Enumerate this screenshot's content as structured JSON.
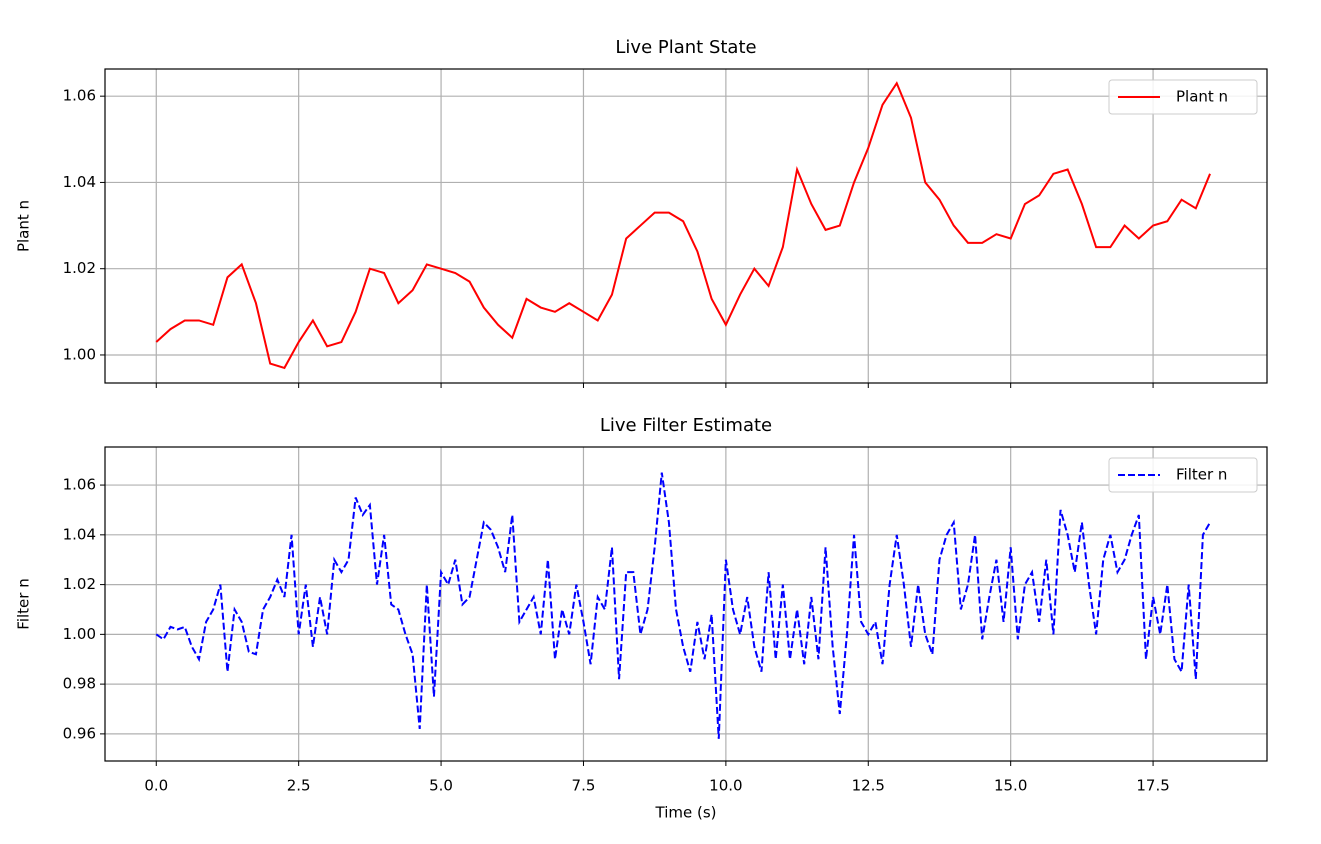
{
  "chart_data": [
    {
      "type": "line",
      "title": "Live Plant State",
      "ylabel": "Plant n",
      "grid": true,
      "legend": "upper right",
      "xlim": [
        -0.9,
        19.5
      ],
      "ylim": [
        0.9935,
        1.0663
      ],
      "xticks": [
        0,
        2.5,
        5,
        7.5,
        10,
        12.5,
        15,
        17.5
      ],
      "yticks": [
        {
          "value": 1.0,
          "label": "1.00"
        },
        {
          "value": 1.02,
          "label": "1.02"
        },
        {
          "value": 1.04,
          "label": "1.04"
        },
        {
          "value": 1.06,
          "label": "1.06"
        }
      ],
      "x": [
        0,
        0.25,
        0.5,
        0.75,
        1,
        1.25,
        1.5,
        1.75,
        2,
        2.25,
        2.5,
        2.75,
        3,
        3.25,
        3.5,
        3.75,
        4,
        4.25,
        4.5,
        4.75,
        5,
        5.25,
        5.5,
        5.75,
        6,
        6.25,
        6.5,
        6.75,
        7,
        7.25,
        7.5,
        7.75,
        8,
        8.25,
        8.5,
        8.75,
        9,
        9.25,
        9.5,
        9.75,
        10,
        10.25,
        10.5,
        10.75,
        11,
        11.25,
        11.5,
        11.75,
        12,
        12.25,
        12.5,
        12.75,
        13,
        13.25,
        13.5,
        13.75,
        14,
        14.25,
        14.5,
        14.75,
        15,
        15.25,
        15.5,
        15.75,
        16,
        16.25,
        16.5,
        16.75,
        17,
        17.25,
        17.5,
        17.75,
        18,
        18.25,
        18.5
      ],
      "series": [
        {
          "name": "Plant n",
          "color": "#ff0000",
          "dash": false,
          "values": [
            1.003,
            1.006,
            1.008,
            1.008,
            1.007,
            1.018,
            1.021,
            1.012,
            0.998,
            0.997,
            1.003,
            1.008,
            1.002,
            1.003,
            1.01,
            1.02,
            1.019,
            1.012,
            1.015,
            1.021,
            1.02,
            1.019,
            1.017,
            1.011,
            1.007,
            1.004,
            1.013,
            1.011,
            1.01,
            1.012,
            1.01,
            1.008,
            1.014,
            1.027,
            1.03,
            1.033,
            1.033,
            1.031,
            1.024,
            1.013,
            1.007,
            1.014,
            1.02,
            1.016,
            1.025,
            1.043,
            1.035,
            1.029,
            1.03,
            1.04,
            1.048,
            1.058,
            1.063,
            1.055,
            1.04,
            1.036,
            1.03,
            1.026,
            1.026,
            1.028,
            1.027,
            1.035,
            1.037,
            1.042,
            1.043,
            1.035,
            1.025,
            1.025,
            1.03,
            1.027,
            1.03,
            1.031,
            1.036,
            1.034,
            1.042
          ]
        }
      ]
    },
    {
      "type": "line",
      "title": "Live Filter Estimate",
      "ylabel": "Filter n",
      "xlabel": "Time (s)",
      "grid": true,
      "legend": "upper right",
      "xlim": [
        -0.9,
        19.5
      ],
      "ylim": [
        0.9491,
        1.0753
      ],
      "xticks": [
        {
          "value": 0,
          "label": "0.0"
        },
        {
          "value": 2.5,
          "label": "2.5"
        },
        {
          "value": 5,
          "label": "5.0"
        },
        {
          "value": 7.5,
          "label": "7.5"
        },
        {
          "value": 10,
          "label": "10.0"
        },
        {
          "value": 12.5,
          "label": "12.5"
        },
        {
          "value": 15,
          "label": "15.0"
        },
        {
          "value": 17.5,
          "label": "17.5"
        }
      ],
      "yticks": [
        {
          "value": 0.96,
          "label": "0.96"
        },
        {
          "value": 0.98,
          "label": "0.98"
        },
        {
          "value": 1.0,
          "label": "1.00"
        },
        {
          "value": 1.02,
          "label": "1.02"
        },
        {
          "value": 1.04,
          "label": "1.04"
        },
        {
          "value": 1.06,
          "label": "1.06"
        }
      ],
      "x": [
        0,
        0.125,
        0.25,
        0.375,
        0.5,
        0.625,
        0.75,
        0.875,
        1,
        1.125,
        1.25,
        1.375,
        1.5,
        1.625,
        1.75,
        1.875,
        2,
        2.125,
        2.25,
        2.375,
        2.5,
        2.625,
        2.75,
        2.875,
        3,
        3.125,
        3.25,
        3.375,
        3.5,
        3.625,
        3.75,
        3.875,
        4,
        4.125,
        4.25,
        4.375,
        4.5,
        4.625,
        4.75,
        4.875,
        5,
        5.125,
        5.25,
        5.375,
        5.5,
        5.625,
        5.75,
        5.875,
        6,
        6.125,
        6.25,
        6.375,
        6.5,
        6.625,
        6.75,
        6.875,
        7,
        7.125,
        7.25,
        7.375,
        7.5,
        7.625,
        7.75,
        7.875,
        8,
        8.125,
        8.25,
        8.375,
        8.5,
        8.625,
        8.75,
        8.875,
        9,
        9.125,
        9.25,
        9.375,
        9.5,
        9.625,
        9.75,
        9.875,
        10,
        10.125,
        10.25,
        10.375,
        10.5,
        10.625,
        10.75,
        10.875,
        11,
        11.125,
        11.25,
        11.375,
        11.5,
        11.625,
        11.75,
        11.875,
        12,
        12.125,
        12.25,
        12.375,
        12.5,
        12.625,
        12.75,
        12.875,
        13,
        13.125,
        13.25,
        13.375,
        13.5,
        13.625,
        13.75,
        13.875,
        14,
        14.125,
        14.25,
        14.375,
        14.5,
        14.625,
        14.75,
        14.875,
        15,
        15.125,
        15.25,
        15.375,
        15.5,
        15.625,
        15.75,
        15.875,
        16,
        16.125,
        16.25,
        16.375,
        16.5,
        16.625,
        16.75,
        16.875,
        17,
        17.125,
        17.25,
        17.375,
        17.5,
        17.625,
        17.75,
        17.875,
        18,
        18.125,
        18.25,
        18.375,
        18.5
      ],
      "series": [
        {
          "name": "Filter n",
          "color": "#0000ff",
          "dash": true,
          "values": [
            1.0,
            0.998,
            1.003,
            1.002,
            1.003,
            0.995,
            0.99,
            1.005,
            1.01,
            1.02,
            0.985,
            1.01,
            1.005,
            0.993,
            0.992,
            1.01,
            1.015,
            1.022,
            1.015,
            1.04,
            1.0,
            1.02,
            0.995,
            1.015,
            1.0,
            1.03,
            1.025,
            1.03,
            1.055,
            1.048,
            1.052,
            1.02,
            1.04,
            1.012,
            1.01,
            1.0,
            0.992,
            0.962,
            1.02,
            0.975,
            1.025,
            1.02,
            1.03,
            1.012,
            1.015,
            1.03,
            1.045,
            1.042,
            1.035,
            1.025,
            1.048,
            1.005,
            1.01,
            1.015,
            1.0,
            1.03,
            0.99,
            1.01,
            1.0,
            1.02,
            1.005,
            0.988,
            1.015,
            1.01,
            1.035,
            0.982,
            1.025,
            1.025,
            1.0,
            1.01,
            1.035,
            1.065,
            1.045,
            1.01,
            0.995,
            0.985,
            1.005,
            0.99,
            1.008,
            0.958,
            1.03,
            1.01,
            1.0,
            1.015,
            0.995,
            0.985,
            1.025,
            0.99,
            1.02,
            0.99,
            1.01,
            0.988,
            1.015,
            0.99,
            1.035,
            0.995,
            0.968,
            1.0,
            1.04,
            1.005,
            1.0,
            1.005,
            0.988,
            1.02,
            1.04,
            1.02,
            0.995,
            1.02,
            1.0,
            0.992,
            1.03,
            1.04,
            1.045,
            1.01,
            1.02,
            1.04,
            0.998,
            1.015,
            1.03,
            1.005,
            1.035,
            0.998,
            1.02,
            1.025,
            1.005,
            1.03,
            1.0,
            1.05,
            1.04,
            1.025,
            1.045,
            1.02,
            1.0,
            1.03,
            1.04,
            1.025,
            1.03,
            1.04,
            1.048,
            0.99,
            1.015,
            1.0,
            1.02,
            0.99,
            0.985,
            1.02,
            0.982,
            1.04,
            1.045
          ]
        }
      ]
    }
  ]
}
